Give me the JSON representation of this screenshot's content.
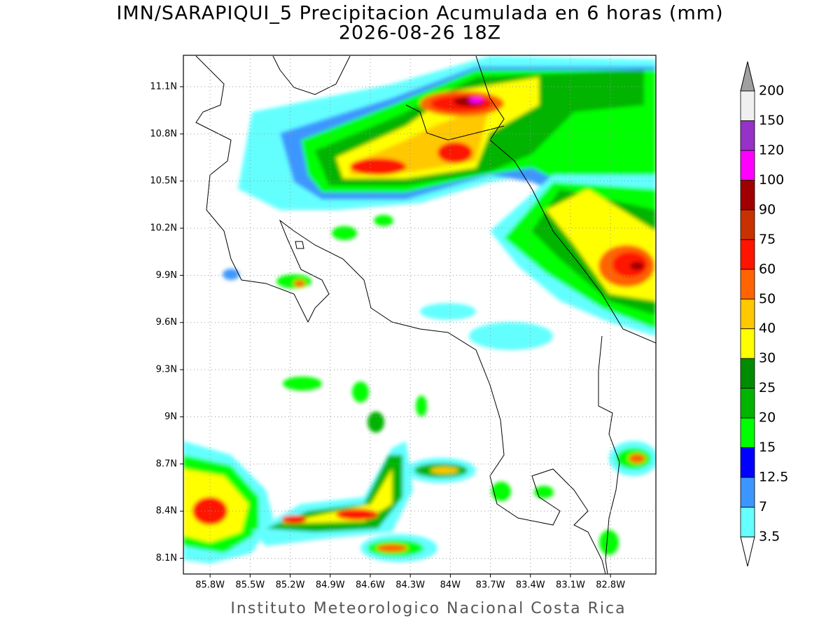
{
  "header": {
    "title": "IMN/SARAPIQUI_5 Precipitacion Acumulada en 6 horas (mm)",
    "subtitle": "2026-08-26 18Z"
  },
  "map": {
    "lon_range": [
      -86.0,
      -82.46
    ],
    "lat_range": [
      8.0,
      11.3
    ],
    "grid": true,
    "lat_ticks": [
      {
        "value": 11.1,
        "label": "11.1N"
      },
      {
        "value": 10.8,
        "label": "10.8N"
      },
      {
        "value": 10.5,
        "label": "10.5N"
      },
      {
        "value": 10.2,
        "label": "10.2N"
      },
      {
        "value": 9.9,
        "label": "9.9N"
      },
      {
        "value": 9.6,
        "label": "9.6N"
      },
      {
        "value": 9.3,
        "label": "9.3N"
      },
      {
        "value": 9.0,
        "label": "9N"
      },
      {
        "value": 8.7,
        "label": "8.7N"
      },
      {
        "value": 8.4,
        "label": "8.4N"
      },
      {
        "value": 8.1,
        "label": "8.1N"
      }
    ],
    "lon_ticks": [
      {
        "value": -85.8,
        "label": "85.8W"
      },
      {
        "value": -85.5,
        "label": "85.5W"
      },
      {
        "value": -85.2,
        "label": "85.2W"
      },
      {
        "value": -84.9,
        "label": "84.9W"
      },
      {
        "value": -84.6,
        "label": "84.6W"
      },
      {
        "value": -84.3,
        "label": "84.3W"
      },
      {
        "value": -84.0,
        "label": "84W"
      },
      {
        "value": -83.7,
        "label": "83.7W"
      },
      {
        "value": -83.4,
        "label": "83.4W"
      },
      {
        "value": -83.1,
        "label": "83.1W"
      },
      {
        "value": -82.8,
        "label": "82.8W"
      }
    ]
  },
  "colorbar": {
    "levels": [
      200,
      150,
      120,
      100,
      90,
      75,
      60,
      50,
      40,
      30,
      25,
      20,
      15,
      12.5,
      7,
      3.5
    ],
    "level_labels": [
      "200",
      "150",
      "120",
      "100",
      "90",
      "75",
      "60",
      "50",
      "40",
      "30",
      "25",
      "20",
      "15",
      "12.5",
      "7",
      "3.5"
    ],
    "colors": [
      "#a0a0a0",
      "#f0f0f0",
      "#9632c8",
      "#ff00ff",
      "#a00000",
      "#c83200",
      "#ff1400",
      "#ff6400",
      "#ffc800",
      "#ffff00",
      "#008c00",
      "#00b400",
      "#00ff00",
      "#0000ff",
      "#3c96ff",
      "#64ffff",
      "#ffffff"
    ]
  },
  "footer": {
    "credit": "Instituto Meteorologico Nacional Costa Rica"
  }
}
